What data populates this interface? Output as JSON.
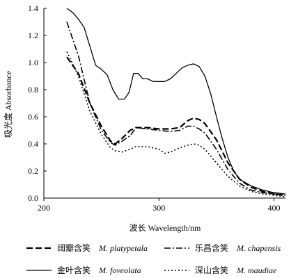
{
  "chart_data": {
    "type": "line",
    "xlabel": "波长 Wavelength/nm",
    "ylabel": "吸光度 Absorbance",
    "xlim": [
      200,
      410
    ],
    "ylim": [
      0.0,
      1.4
    ],
    "x_ticks": [
      "200",
      "300",
      "400"
    ],
    "y_ticks": [
      "0.0",
      "0.2",
      "0.4",
      "0.6",
      "0.8",
      "1.0",
      "1.2",
      "1.4"
    ],
    "grid": false,
    "legend_position": "bottom",
    "series": [
      {
        "name": "阔瓣含笑",
        "name_latin": "M. platypetala",
        "style": "dashed",
        "points": [
          [
            220,
            1.04
          ],
          [
            230,
            0.92
          ],
          [
            240,
            0.7
          ],
          [
            250,
            0.53
          ],
          [
            258,
            0.42
          ],
          [
            262,
            0.4
          ],
          [
            268,
            0.44
          ],
          [
            275,
            0.5
          ],
          [
            280,
            0.52
          ],
          [
            290,
            0.52
          ],
          [
            300,
            0.51
          ],
          [
            310,
            0.51
          ],
          [
            318,
            0.52
          ],
          [
            325,
            0.57
          ],
          [
            330,
            0.59
          ],
          [
            335,
            0.58
          ],
          [
            340,
            0.55
          ],
          [
            350,
            0.43
          ],
          [
            360,
            0.26
          ],
          [
            370,
            0.14
          ],
          [
            380,
            0.08
          ],
          [
            390,
            0.05
          ],
          [
            400,
            0.03
          ],
          [
            410,
            0.02
          ]
        ]
      },
      {
        "name": "乐昌含笑",
        "name_latin": "M. chapensis",
        "style": "dashdot",
        "points": [
          [
            220,
            1.3
          ],
          [
            230,
            1.05
          ],
          [
            240,
            0.7
          ],
          [
            250,
            0.5
          ],
          [
            258,
            0.41
          ],
          [
            262,
            0.39
          ],
          [
            268,
            0.42
          ],
          [
            275,
            0.46
          ],
          [
            280,
            0.52
          ],
          [
            290,
            0.51
          ],
          [
            300,
            0.5
          ],
          [
            310,
            0.49
          ],
          [
            318,
            0.5
          ],
          [
            325,
            0.53
          ],
          [
            330,
            0.53
          ],
          [
            335,
            0.51
          ],
          [
            340,
            0.48
          ],
          [
            350,
            0.36
          ],
          [
            360,
            0.21
          ],
          [
            370,
            0.11
          ],
          [
            380,
            0.06
          ],
          [
            390,
            0.04
          ],
          [
            400,
            0.03
          ],
          [
            410,
            0.02
          ]
        ]
      },
      {
        "name": "金叶含笑",
        "name_latin": "M. foveolata",
        "style": "solid",
        "points": [
          [
            220,
            1.4
          ],
          [
            225,
            1.37
          ],
          [
            230,
            1.32
          ],
          [
            235,
            1.26
          ],
          [
            240,
            1.12
          ],
          [
            245,
            0.98
          ],
          [
            250,
            0.95
          ],
          [
            255,
            0.91
          ],
          [
            260,
            0.8
          ],
          [
            265,
            0.73
          ],
          [
            270,
            0.73
          ],
          [
            274,
            0.78
          ],
          [
            278,
            0.92
          ],
          [
            282,
            0.92
          ],
          [
            286,
            0.88
          ],
          [
            290,
            0.88
          ],
          [
            295,
            0.86
          ],
          [
            300,
            0.86
          ],
          [
            305,
            0.86
          ],
          [
            310,
            0.88
          ],
          [
            315,
            0.92
          ],
          [
            320,
            0.96
          ],
          [
            325,
            0.98
          ],
          [
            330,
            0.99
          ],
          [
            335,
            0.97
          ],
          [
            340,
            0.9
          ],
          [
            345,
            0.77
          ],
          [
            350,
            0.6
          ],
          [
            355,
            0.44
          ],
          [
            360,
            0.3
          ],
          [
            365,
            0.2
          ],
          [
            370,
            0.14
          ],
          [
            380,
            0.09
          ],
          [
            390,
            0.06
          ],
          [
            400,
            0.04
          ],
          [
            410,
            0.03
          ]
        ]
      },
      {
        "name": "深山含笑",
        "name_latin": "M. maudiae",
        "style": "dotted",
        "points": [
          [
            220,
            1.08
          ],
          [
            230,
            0.9
          ],
          [
            240,
            0.64
          ],
          [
            250,
            0.47
          ],
          [
            258,
            0.37
          ],
          [
            262,
            0.35
          ],
          [
            268,
            0.34
          ],
          [
            275,
            0.36
          ],
          [
            280,
            0.38
          ],
          [
            290,
            0.38
          ],
          [
            300,
            0.36
          ],
          [
            305,
            0.33
          ],
          [
            310,
            0.34
          ],
          [
            318,
            0.37
          ],
          [
            325,
            0.39
          ],
          [
            330,
            0.4
          ],
          [
            335,
            0.39
          ],
          [
            340,
            0.36
          ],
          [
            350,
            0.26
          ],
          [
            360,
            0.16
          ],
          [
            370,
            0.09
          ],
          [
            380,
            0.05
          ],
          [
            390,
            0.03
          ],
          [
            400,
            0.02
          ],
          [
            410,
            0.01
          ]
        ]
      }
    ]
  }
}
